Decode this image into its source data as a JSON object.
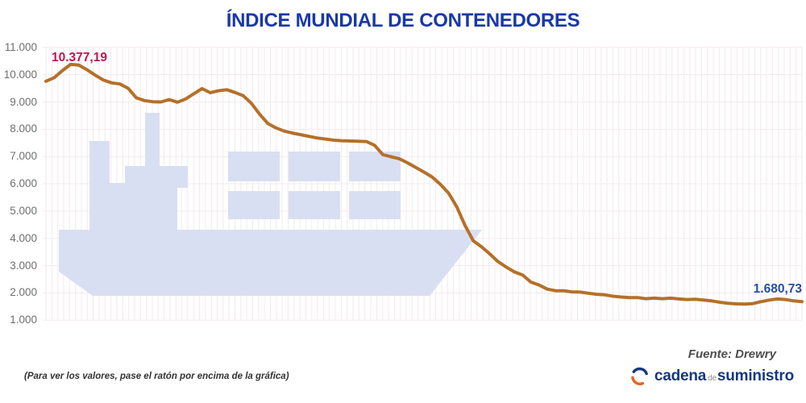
{
  "title": "ÍNDICE MUNDIAL DE CONTENEDORES",
  "annotations": {
    "start_value": "10.377,19",
    "end_value": "1.680,73"
  },
  "source": "Fuente: Drewry",
  "footnote": "(Para ver los valores, pase el ratón por encima de la gráfica)",
  "logo": {
    "word1": "cadena",
    "word2": "de",
    "word3": "suministro"
  },
  "y_axis": {
    "tick_labels": [
      "11.000",
      "10.000",
      "9.000",
      "8.000",
      "7.000",
      "6.000",
      "5.000",
      "4.000",
      "3.000",
      "2.000",
      "1.000"
    ],
    "tick_values": [
      11000,
      10000,
      9000,
      8000,
      7000,
      6000,
      5000,
      4000,
      3000,
      2000,
      1000
    ],
    "min": 1000,
    "max": 11000
  },
  "colors": {
    "line": "#b57029",
    "title": "#1a38a8",
    "start_annotation": "#c01551",
    "end_annotation": "#274ea2",
    "axis_text": "#6f6f6f",
    "grid": "#f3eaed",
    "watermark": "#d9dff2",
    "logo_blue": "#16387f",
    "logo_orange": "#e8641f"
  },
  "chart_data": {
    "type": "line",
    "title": "ÍNDICE MUNDIAL DE CONTENEDORES",
    "xlabel": "",
    "ylabel": "",
    "x_axis_labels": [],
    "ylim": [
      1000,
      11000
    ],
    "grid": true,
    "legend": "none",
    "point_annotations": {
      "max_point": "10.377,19",
      "last_point": "1.680,73"
    },
    "series": [
      {
        "name": "Índice mundial de contenedores",
        "values": [
          9760,
          9890,
          10150,
          10377.19,
          10350,
          10180,
          9980,
          9800,
          9700,
          9660,
          9500,
          9150,
          9050,
          9010,
          9000,
          9090,
          8990,
          9110,
          9300,
          9490,
          9340,
          9410,
          9450,
          9350,
          9230,
          8950,
          8550,
          8210,
          8050,
          7930,
          7860,
          7800,
          7740,
          7680,
          7640,
          7600,
          7580,
          7570,
          7560,
          7550,
          7410,
          7070,
          6990,
          6920,
          6770,
          6600,
          6430,
          6250,
          5980,
          5660,
          5150,
          4470,
          3910,
          3690,
          3430,
          3150,
          2950,
          2770,
          2660,
          2400,
          2290,
          2140,
          2080,
          2080,
          2040,
          2030,
          1990,
          1950,
          1930,
          1880,
          1850,
          1830,
          1830,
          1790,
          1810,
          1790,
          1810,
          1780,
          1760,
          1770,
          1740,
          1710,
          1660,
          1620,
          1600,
          1590,
          1610,
          1680,
          1740,
          1780,
          1760,
          1710,
          1680.73
        ]
      }
    ]
  }
}
